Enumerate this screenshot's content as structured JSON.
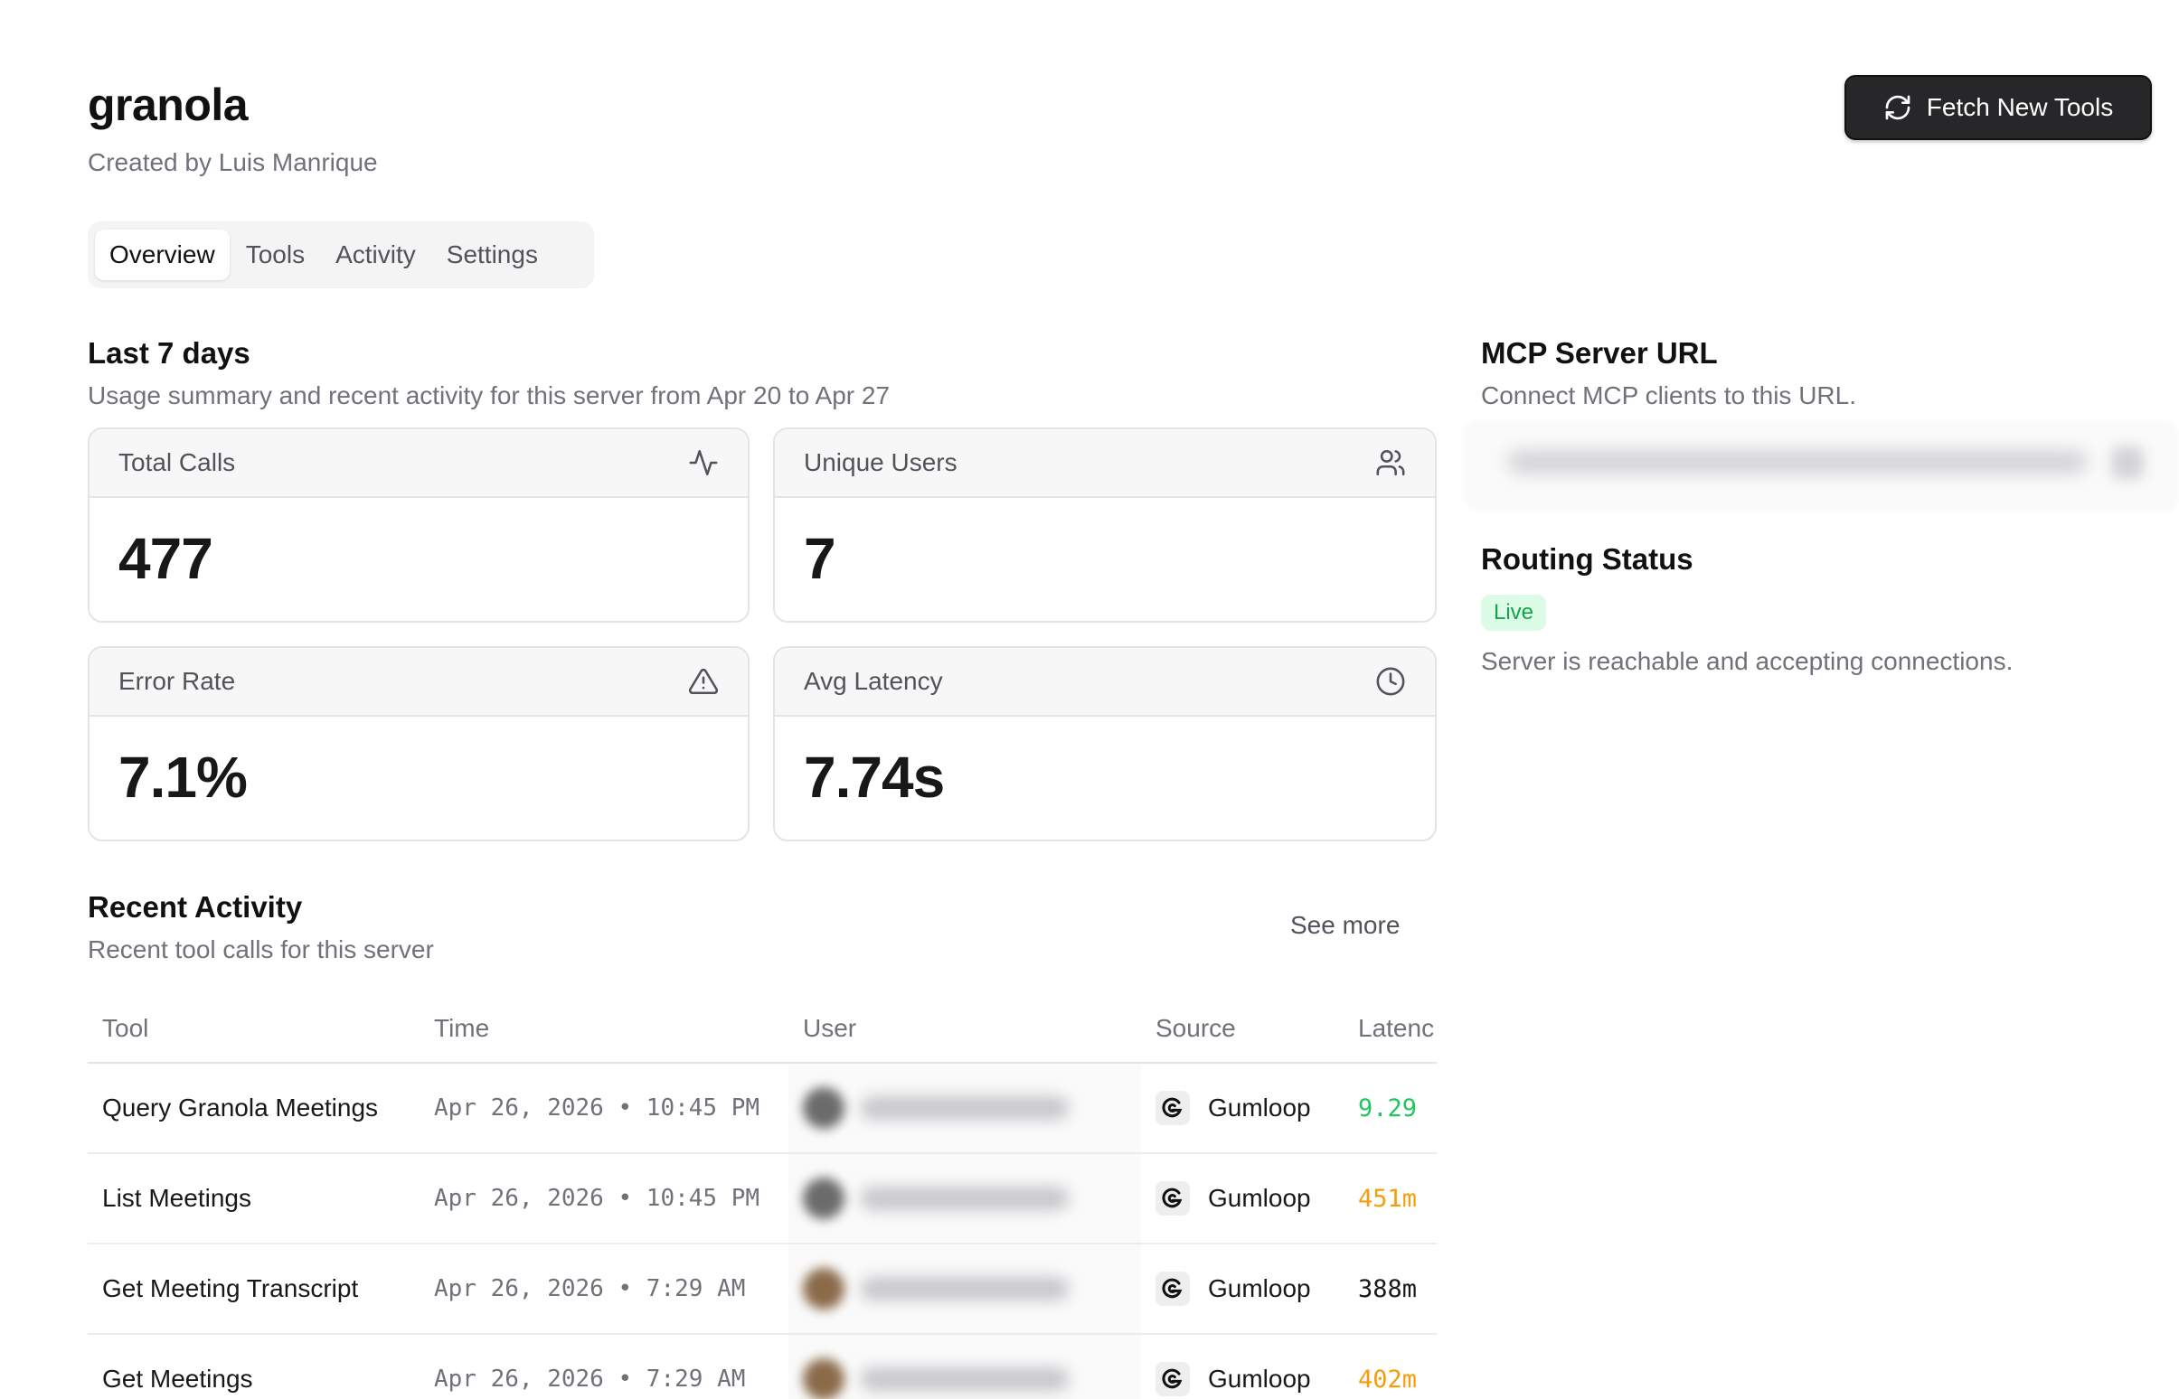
{
  "header": {
    "title": "granola",
    "subtitle": "Created by Luis Manrique",
    "fetch_button": "Fetch New Tools"
  },
  "tabs": [
    {
      "label": "Overview",
      "active": true
    },
    {
      "label": "Tools",
      "active": false
    },
    {
      "label": "Activity",
      "active": false
    },
    {
      "label": "Settings",
      "active": false
    }
  ],
  "summary": {
    "title": "Last 7 days",
    "subtitle": "Usage summary and recent activity for this server from Apr 20 to Apr 27"
  },
  "stats": [
    {
      "label": "Total Calls",
      "value": "477",
      "icon": "activity-icon"
    },
    {
      "label": "Unique Users",
      "value": "7",
      "icon": "users-icon"
    },
    {
      "label": "Error Rate",
      "value": "7.1%",
      "icon": "warning-icon"
    },
    {
      "label": "Avg Latency",
      "value": "7.74s",
      "icon": "clock-icon"
    }
  ],
  "recent": {
    "title": "Recent Activity",
    "subtitle": "Recent tool calls for this server",
    "see_more": "See more",
    "columns": [
      "Tool",
      "Time",
      "User",
      "Source",
      "Latenc"
    ],
    "rows": [
      {
        "tool": "Query Granola Meetings",
        "time": "Apr 26, 2026 • 10:45 PM",
        "source": "Gumloop",
        "latency": "9.29",
        "latency_color": "#22c55e",
        "avatar_color": "#6b6b6b"
      },
      {
        "tool": "List Meetings",
        "time": "Apr 26, 2026 • 10:45 PM",
        "source": "Gumloop",
        "latency": "451m",
        "latency_color": "#f59e0b",
        "avatar_color": "#6b6b6b"
      },
      {
        "tool": "Get Meeting Transcript",
        "time": "Apr 26, 2026 • 7:29 AM",
        "source": "Gumloop",
        "latency": "388m",
        "latency_color": "#18181b",
        "avatar_color": "#8b6a4a"
      },
      {
        "tool": "Get Meetings",
        "time": "Apr 26, 2026 • 7:29 AM",
        "source": "Gumloop",
        "latency": "402m",
        "latency_color": "#f59e0b",
        "avatar_color": "#8b6a4a"
      }
    ]
  },
  "mcp": {
    "title": "MCP Server URL",
    "subtitle": "Connect MCP clients to this URL."
  },
  "routing": {
    "title": "Routing Status",
    "badge": "Live",
    "description": "Server is reachable and accepting connections."
  }
}
